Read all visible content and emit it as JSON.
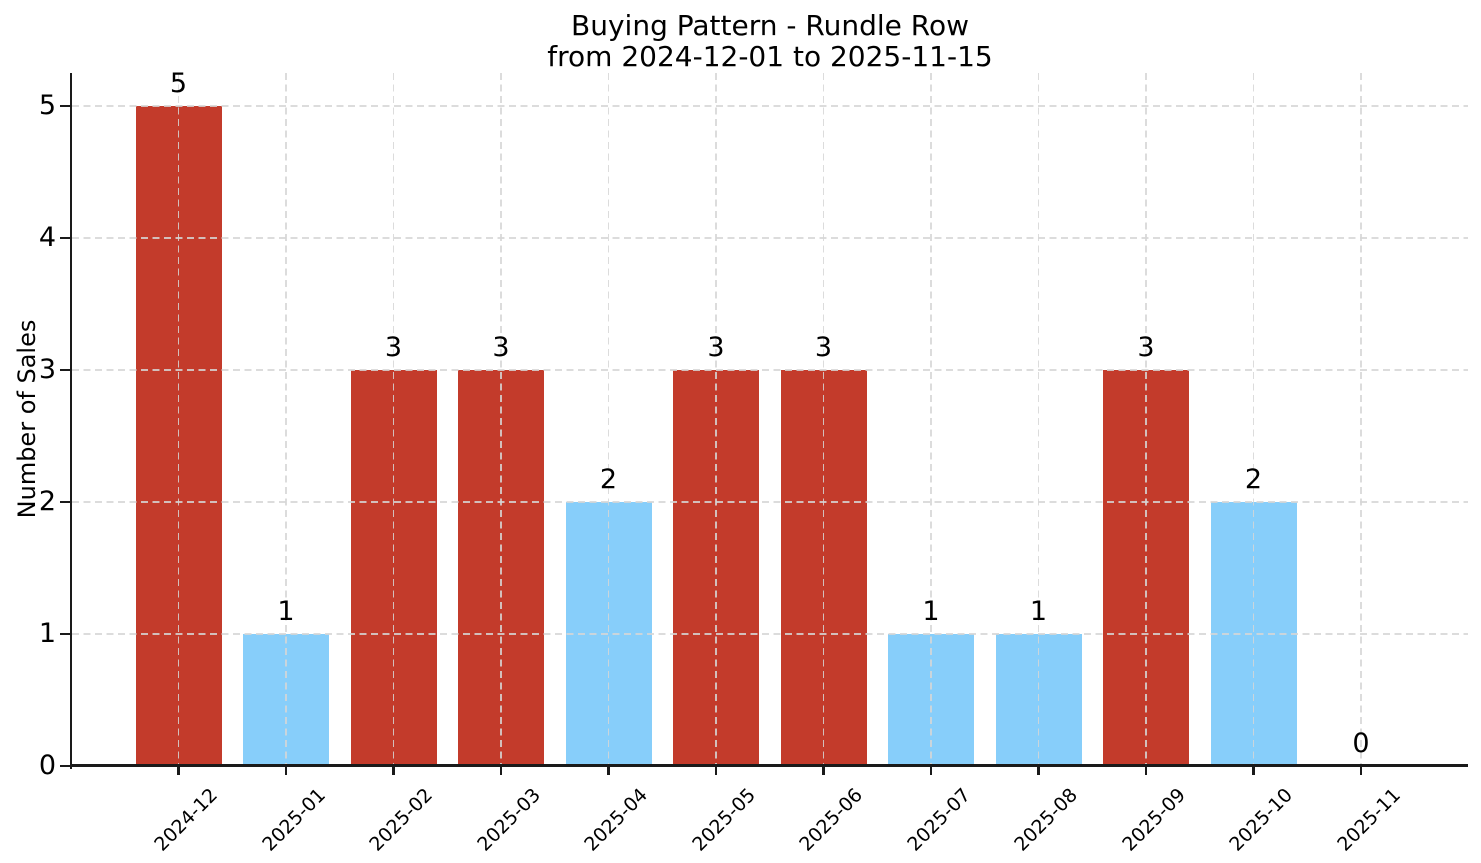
{
  "chart_data": {
    "type": "bar",
    "title": "Buying Pattern - Rundle Row",
    "subtitle": "from 2024-12-01 to 2025-11-15",
    "xlabel": "",
    "ylabel": "Number of Sales",
    "categories": [
      "2024-12",
      "2025-01",
      "2025-02",
      "2025-03",
      "2025-04",
      "2025-05",
      "2025-06",
      "2025-07",
      "2025-08",
      "2025-09",
      "2025-10",
      "2025-11"
    ],
    "values": [
      5,
      1,
      3,
      3,
      2,
      3,
      3,
      1,
      1,
      3,
      2,
      0
    ],
    "bar_colors": [
      "#c33b2b",
      "#87cefa",
      "#c33b2b",
      "#c33b2b",
      "#87cefa",
      "#c33b2b",
      "#c33b2b",
      "#87cefa",
      "#87cefa",
      "#c33b2b",
      "#87cefa",
      "#87cefa"
    ],
    "yticks": [
      0,
      1,
      2,
      3,
      4,
      5
    ],
    "ylim": [
      0,
      5.25
    ],
    "grid": "dashed",
    "legend": null,
    "colors": {
      "high_bar": "#c33b2b",
      "low_bar": "#87cefa",
      "grid": "#d6d6d6",
      "axis": "#1a1a1a",
      "text": "#000000",
      "background": "#ffffff"
    }
  }
}
